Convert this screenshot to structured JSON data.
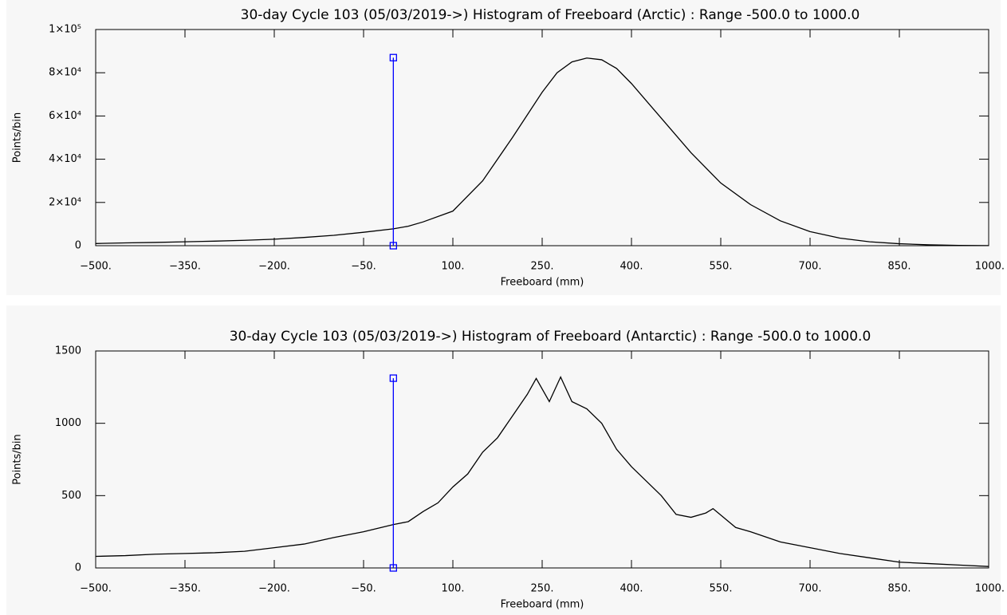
{
  "chart_data": [
    {
      "type": "line",
      "title": "30-day Cycle 103 (05/03/2019->) Histogram of Freeboard (Arctic) :  Range -500.0 to 1000.0",
      "x_label": "Freeboard (mm)",
      "y_label": "Points/bin",
      "xlim": [
        -500,
        1000
      ],
      "xticks": [
        {
          "value": -500,
          "label": "−500."
        },
        {
          "value": -350,
          "label": "−350."
        },
        {
          "value": -200,
          "label": "−200."
        },
        {
          "value": -50,
          "label": "−50."
        },
        {
          "value": 100,
          "label": "100."
        },
        {
          "value": 250,
          "label": "250."
        },
        {
          "value": 400,
          "label": "400."
        },
        {
          "value": 550,
          "label": "550."
        },
        {
          "value": 700,
          "label": "700."
        },
        {
          "value": 850,
          "label": "850."
        },
        {
          "value": 1000,
          "label": "1000."
        }
      ],
      "ylim": [
        0,
        100000
      ],
      "yticks": [
        0,
        {
          "value": 20000,
          "label": "2×10⁴"
        },
        {
          "value": 40000,
          "label": "4×10⁴"
        },
        {
          "value": 60000,
          "label": "6×10⁴"
        },
        {
          "value": 80000,
          "label": "8×10⁴"
        },
        {
          "value": 100000,
          "label": "1×10⁵"
        }
      ],
      "x": [
        -500,
        -450,
        -400,
        -350,
        -300,
        -250,
        -200,
        -150,
        -100,
        -50,
        0,
        25,
        50,
        100,
        150,
        200,
        250,
        275,
        300,
        325,
        350,
        375,
        400,
        450,
        500,
        550,
        600,
        650,
        700,
        750,
        800,
        850,
        900,
        950,
        1000
      ],
      "series": [
        {
          "color": "#000000",
          "values": [
            1000,
            1300,
            1500,
            1800,
            2100,
            2500,
            3000,
            3800,
            4800,
            6200,
            7800,
            9000,
            11000,
            16000,
            30000,
            50000,
            71000,
            80000,
            85000,
            86800,
            86000,
            82000,
            75000,
            59000,
            43000,
            29000,
            19000,
            11500,
            6500,
            3500,
            1800,
            900,
            400,
            150,
            50
          ]
        }
      ],
      "vline": {
        "x": 0,
        "y": [
          0,
          87000
        ],
        "color": "#0000ff"
      }
    },
    {
      "type": "line",
      "title": "30-day Cycle 103 (05/03/2019->) Histogram of Freeboard (Antarctic) :  Range -500.0 to 1000.0",
      "x_label": "Freeboard (mm)",
      "y_label": "Points/bin",
      "xlim": [
        -500,
        1000
      ],
      "xticks": [
        {
          "value": -500,
          "label": "−500."
        },
        {
          "value": -350,
          "label": "−350."
        },
        {
          "value": -200,
          "label": "−200."
        },
        {
          "value": -50,
          "label": "−50."
        },
        {
          "value": 100,
          "label": "100."
        },
        {
          "value": 250,
          "label": "250."
        },
        {
          "value": 400,
          "label": "400."
        },
        {
          "value": 550,
          "label": "550."
        },
        {
          "value": 700,
          "label": "700."
        },
        {
          "value": 850,
          "label": "850."
        },
        {
          "value": 1000,
          "label": "1000."
        }
      ],
      "ylim": [
        0,
        1500
      ],
      "yticks": [
        0,
        500,
        1000,
        1500
      ],
      "x": [
        -500,
        -450,
        -400,
        -350,
        -300,
        -250,
        -200,
        -150,
        -100,
        -50,
        0,
        25,
        50,
        75,
        100,
        125,
        150,
        175,
        200,
        225,
        240,
        262,
        281,
        300,
        325,
        350,
        375,
        400,
        425,
        450,
        475,
        500,
        525,
        537,
        575,
        600,
        650,
        700,
        750,
        800,
        850,
        900,
        950,
        1000
      ],
      "series": [
        {
          "color": "#000000",
          "values": [
            80,
            85,
            95,
            100,
            105,
            115,
            140,
            165,
            210,
            250,
            300,
            320,
            390,
            450,
            560,
            650,
            800,
            900,
            1050,
            1200,
            1310,
            1150,
            1320,
            1150,
            1100,
            1000,
            820,
            700,
            600,
            500,
            370,
            350,
            380,
            410,
            280,
            250,
            180,
            140,
            100,
            70,
            40,
            30,
            20,
            10
          ]
        }
      ],
      "vline": {
        "x": 0,
        "y": [
          0,
          1312
        ],
        "color": "#0000ff"
      }
    }
  ]
}
